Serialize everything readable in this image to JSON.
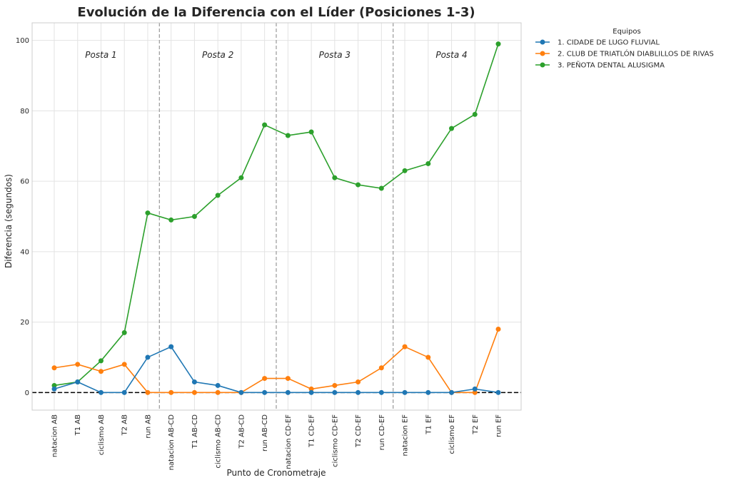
{
  "chart_data": {
    "type": "line",
    "title": "Evolución de la Diferencia con el Líder (Posiciones 1-3)",
    "xlabel": "Punto de Cronometraje",
    "ylabel": "Diferencia (segundos)",
    "ylim": [
      -5,
      105
    ],
    "yticks": [
      0,
      20,
      40,
      60,
      80,
      100
    ],
    "grid": true,
    "categories": [
      "natacion AB",
      "T1 AB",
      "ciclismo AB",
      "T2 AB",
      "run AB",
      "natacion AB-CD",
      "T1 AB-CD",
      "ciclismo AB-CD",
      "T2 AB-CD",
      "run AB-CD",
      "natacion CD-EF",
      "T1 CD-EF",
      "ciclismo CD-EF",
      "T2 CD-EF",
      "run CD-EF",
      "natacion EF",
      "T1 EF",
      "ciclismo EF",
      "T2 EF",
      "run EF"
    ],
    "legend_title": "Equipos",
    "legend_position": "outside-top-right",
    "series": [
      {
        "name": "1. CIDADE DE LUGO FLUVIAL",
        "color": "#1f77b4",
        "values": [
          1,
          3,
          0,
          0,
          10,
          13,
          3,
          2,
          0,
          0,
          0,
          0,
          0,
          0,
          0,
          0,
          0,
          0,
          1,
          0
        ]
      },
      {
        "name": "2. CLUB DE TRIATLÓN DIABLILLOS DE RIVAS",
        "color": "#ff7f0e",
        "values": [
          7,
          8,
          6,
          8,
          0,
          0,
          0,
          0,
          0,
          4,
          4,
          1,
          2,
          3,
          7,
          13,
          10,
          0,
          0,
          18
        ]
      },
      {
        "name": "3. PEÑOTA DENTAL ALUSIGMA",
        "color": "#2ca02c",
        "values": [
          2,
          3,
          9,
          17,
          51,
          49,
          50,
          56,
          61,
          76,
          73,
          74,
          61,
          59,
          58,
          63,
          65,
          75,
          79,
          99
        ]
      }
    ],
    "reference_line": {
      "y": 0,
      "style": "dashed",
      "color": "#000000"
    },
    "sections": [
      {
        "label": "Posta 1",
        "from_index": 0,
        "to_index": 4
      },
      {
        "label": "Posta 2",
        "from_index": 5,
        "to_index": 9
      },
      {
        "label": "Posta 3",
        "from_index": 10,
        "to_index": 14
      },
      {
        "label": "Posta 4",
        "from_index": 15,
        "to_index": 19
      }
    ],
    "section_divider_color": "#a0a0a0"
  }
}
